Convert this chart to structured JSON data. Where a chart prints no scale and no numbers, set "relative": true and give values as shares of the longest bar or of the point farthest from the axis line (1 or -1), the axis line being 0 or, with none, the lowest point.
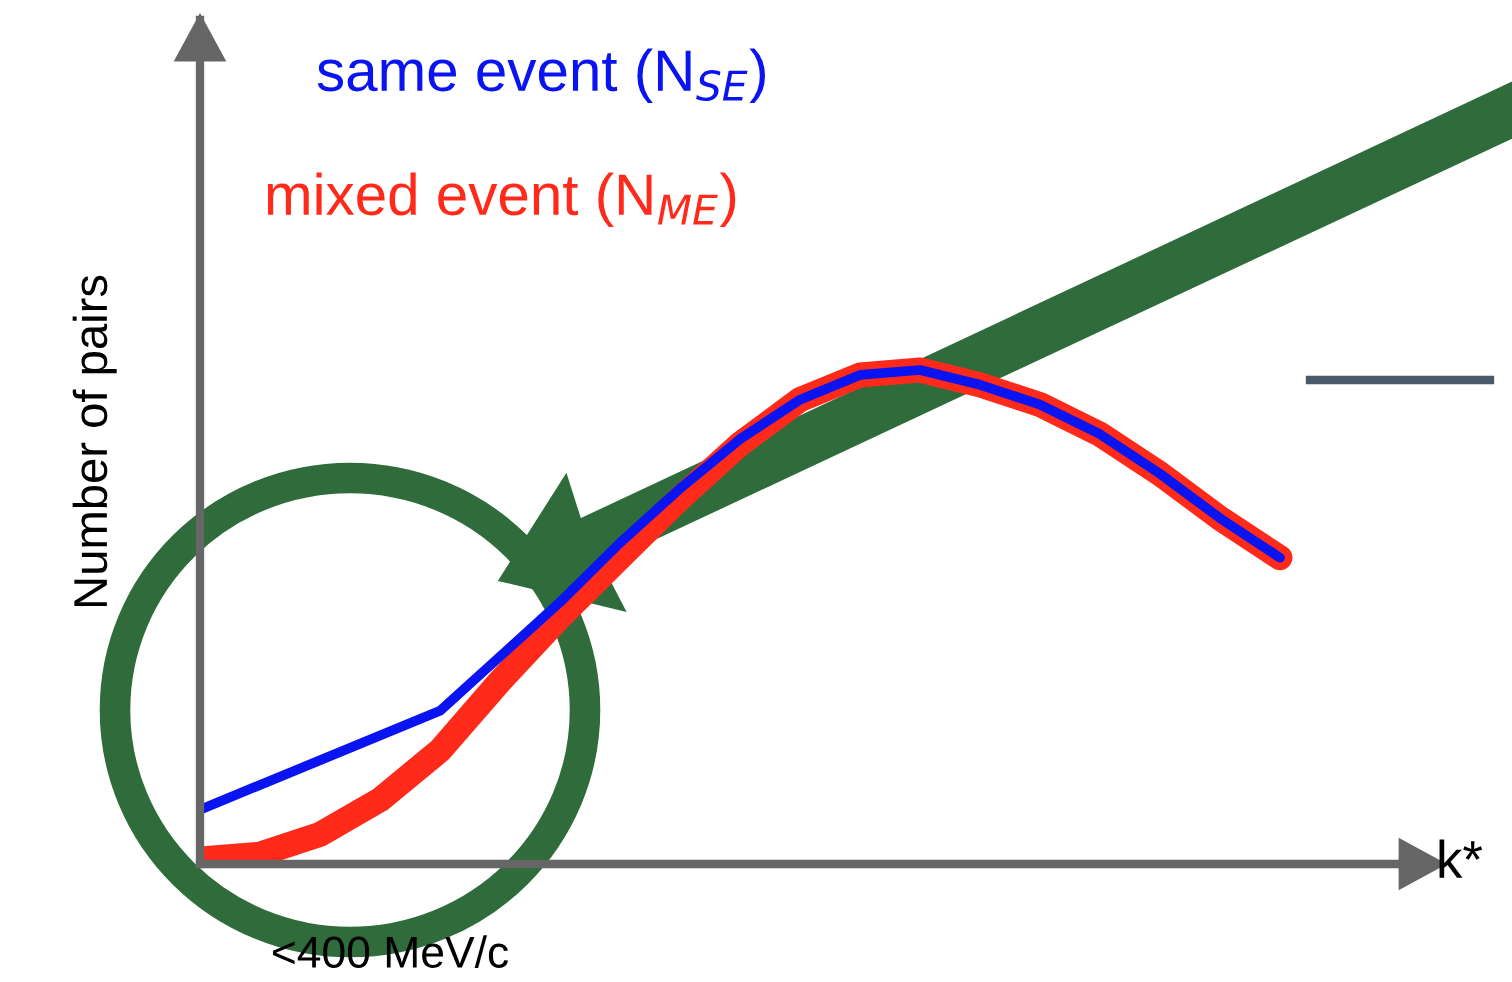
{
  "chart_data": {
    "type": "line",
    "relative": true,
    "xlabel": "k*",
    "ylabel": "Number of pairs",
    "categories": [
      null,
      null,
      null,
      null,
      null,
      null,
      null,
      null,
      null,
      null,
      null,
      null,
      null,
      null,
      null,
      null,
      null,
      null,
      null
    ],
    "series": [
      {
        "name": "mixed event (N$_{ME}$)",
        "color": "#ff2a1a",
        "values": [
          0.01,
          0.02,
          0.06,
          0.13,
          0.23,
          0.37,
          0.5,
          0.62,
          0.74,
          0.85,
          0.94,
          0.99,
          1.0,
          0.97,
          0.93,
          0.87,
          0.79,
          0.7,
          0.62
        ]
      },
      {
        "name": "same event (N$_{SE}$)",
        "color": "#0a14f0",
        "values": [
          0.11,
          0.16,
          0.21,
          0.26,
          0.31,
          0.42,
          0.53,
          0.65,
          0.76,
          0.86,
          0.94,
          0.99,
          1.0,
          0.97,
          0.93,
          0.87,
          0.79,
          0.7,
          0.62
        ]
      }
    ],
    "annotations": [
      "<400 MeV/c"
    ],
    "legend": "top left"
  }
}
